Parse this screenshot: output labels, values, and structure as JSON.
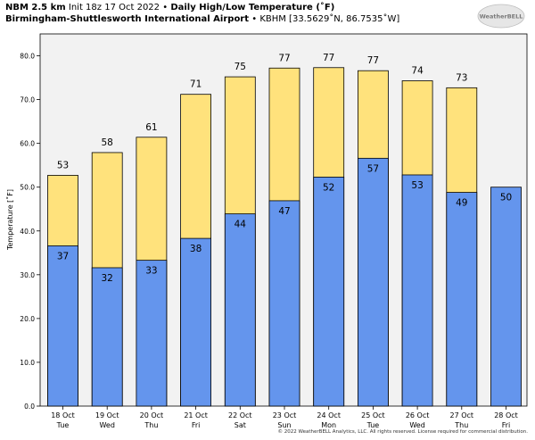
{
  "header": {
    "model": "NBM 2.5 km",
    "init": "Init 18z 17 Oct 2022",
    "sep": "•",
    "title": "Daily High/Low Temperature (˚F)",
    "station": "Birmingham-Shuttlesworth International Airport",
    "station_info": "KBHM [33.5629˚N, 86.7535˚W]"
  },
  "logo": {
    "text": "WeatherBELL"
  },
  "footer": {
    "copyright": "© 2022 WeatherBELL Analytics, LLC. All rights reserved. License required for commercial distribution."
  },
  "colors": {
    "plot_bg": "#f2f2f2",
    "high_bar": "#ffe27c",
    "low_bar": "#6495ed",
    "bar_edge": "#000000"
  },
  "chart_data": {
    "type": "bar",
    "title": "Daily High/Low Temperature (˚F)",
    "ylabel": "Temperature [˚F]",
    "xlabel": "",
    "ylim": [
      0,
      85
    ],
    "yticks": [
      "0.0",
      "10.0",
      "20.0",
      "30.0",
      "40.0",
      "50.0",
      "60.0",
      "70.0",
      "80.0"
    ],
    "grid": false,
    "categories": [
      "18 Oct",
      "19 Oct",
      "20 Oct",
      "21 Oct",
      "22 Oct",
      "23 Oct",
      "24 Oct",
      "25 Oct",
      "26 Oct",
      "27 Oct",
      "28 Oct"
    ],
    "weekdays": [
      "Tue",
      "Wed",
      "Thu",
      "Fri",
      "Sat",
      "Sun",
      "Mon",
      "Tue",
      "Wed",
      "Thu",
      "Fri"
    ],
    "series": [
      {
        "values": [
          52.7,
          57.9,
          61.4,
          71.2,
          75.2,
          77.2,
          77.3,
          76.6,
          74.3,
          72.7,
          null
        ],
        "labels": [
          "53",
          "58",
          "61",
          "71",
          "75",
          "77",
          "77",
          "77",
          "74",
          "73",
          ""
        ]
      },
      {
        "values": [
          36.6,
          31.6,
          33.3,
          38.3,
          43.9,
          46.9,
          52.3,
          56.6,
          52.8,
          48.8,
          50.0
        ],
        "labels": [
          "37",
          "32",
          "33",
          "38",
          "44",
          "47",
          "52",
          "57",
          "53",
          "49",
          "50"
        ]
      }
    ]
  }
}
